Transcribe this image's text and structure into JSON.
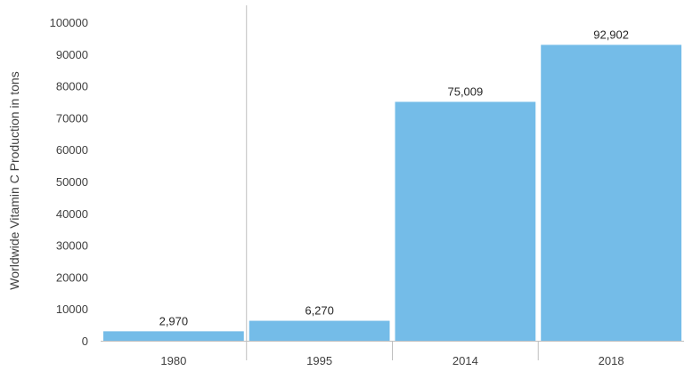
{
  "chart_data": {
    "type": "bar",
    "categories": [
      "1980",
      "1995",
      "2014",
      "2018"
    ],
    "values": [
      2970,
      6270,
      75009,
      92902
    ],
    "data_labels": [
      "2,970",
      "6,270",
      "75,009",
      "92,902"
    ],
    "title": "",
    "xlabel": "",
    "ylabel": "Worldwide Vitamin C Production in tons",
    "ylim": [
      0,
      100000
    ],
    "yticks": [
      "0",
      "10000",
      "20000",
      "30000",
      "40000",
      "50000",
      "60000",
      "70000",
      "80000",
      "90000",
      "100000"
    ],
    "grid": false,
    "legend": "none",
    "bar_color": "#74bce8",
    "axis_color": "#bfbfbf"
  }
}
